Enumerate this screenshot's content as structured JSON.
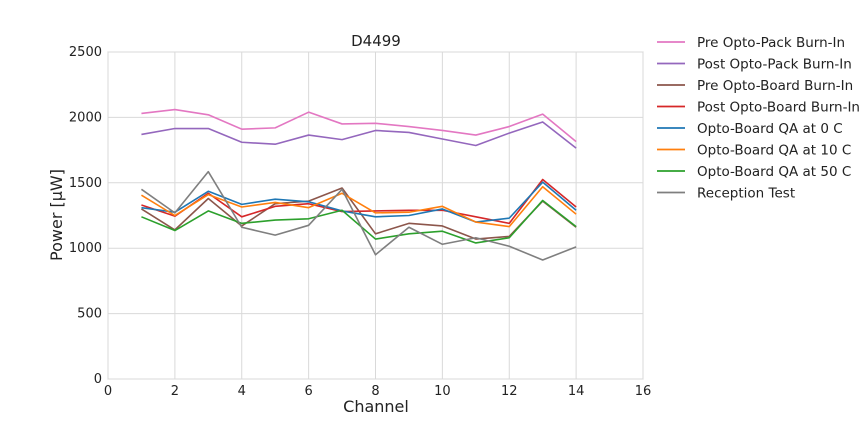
{
  "chart_data": {
    "type": "line",
    "title": "D4499",
    "xlabel": "Channel",
    "ylabel": "Power [μW]",
    "xlim": [
      0,
      16
    ],
    "ylim": [
      0,
      2500
    ],
    "xticks": [
      0,
      2,
      4,
      6,
      8,
      10,
      12,
      14,
      16
    ],
    "yticks": [
      0,
      500,
      1000,
      1500,
      2000,
      2500
    ],
    "grid": true,
    "legend_position": "outside-right",
    "x": [
      1,
      2,
      3,
      4,
      5,
      6,
      7,
      8,
      9,
      10,
      11,
      12,
      13,
      14
    ],
    "series": [
      {
        "name": "Pre Opto-Pack Burn-In",
        "color": "#e377c2",
        "values": [
          2030,
          2060,
          2020,
          1910,
          1920,
          2040,
          1950,
          1955,
          1930,
          1900,
          1865,
          1930,
          2025,
          1815
        ]
      },
      {
        "name": "Post Opto-Pack Burn-In",
        "color": "#9467bd",
        "values": [
          1870,
          1915,
          1915,
          1810,
          1795,
          1865,
          1830,
          1900,
          1885,
          1835,
          1785,
          1880,
          1965,
          1765
        ]
      },
      {
        "name": "Pre Opto-Board Burn-In",
        "color": "#8c564b",
        "values": [
          1300,
          1140,
          1380,
          1170,
          1340,
          1360,
          1460,
          1110,
          1190,
          1170,
          1070,
          1090,
          1360,
          1160
        ]
      },
      {
        "name": "Post Opto-Board Burn-In",
        "color": "#d62728",
        "values": [
          1330,
          1245,
          1420,
          1240,
          1320,
          1340,
          1280,
          1285,
          1290,
          1290,
          1240,
          1190,
          1525,
          1315
        ]
      },
      {
        "name": "Opto-Board QA at 0 C",
        "color": "#1f77b4",
        "values": [
          1310,
          1275,
          1435,
          1335,
          1375,
          1355,
          1285,
          1240,
          1250,
          1300,
          1200,
          1230,
          1505,
          1290
        ]
      },
      {
        "name": "Opto-Board QA at 10 C",
        "color": "#ff7f0e",
        "values": [
          1405,
          1250,
          1410,
          1315,
          1350,
          1310,
          1420,
          1270,
          1275,
          1320,
          1200,
          1165,
          1470,
          1260
        ]
      },
      {
        "name": "Opto-Board QA at 50 C",
        "color": "#2ca02c",
        "values": [
          1240,
          1135,
          1285,
          1190,
          1215,
          1225,
          1290,
          1070,
          1110,
          1130,
          1040,
          1080,
          1365,
          1165
        ]
      },
      {
        "name": "Reception Test",
        "color": "#7f7f7f",
        "values": [
          1450,
          1270,
          1585,
          1160,
          1100,
          1175,
          1450,
          950,
          1160,
          1030,
          1080,
          1015,
          910,
          1010
        ]
      }
    ]
  }
}
